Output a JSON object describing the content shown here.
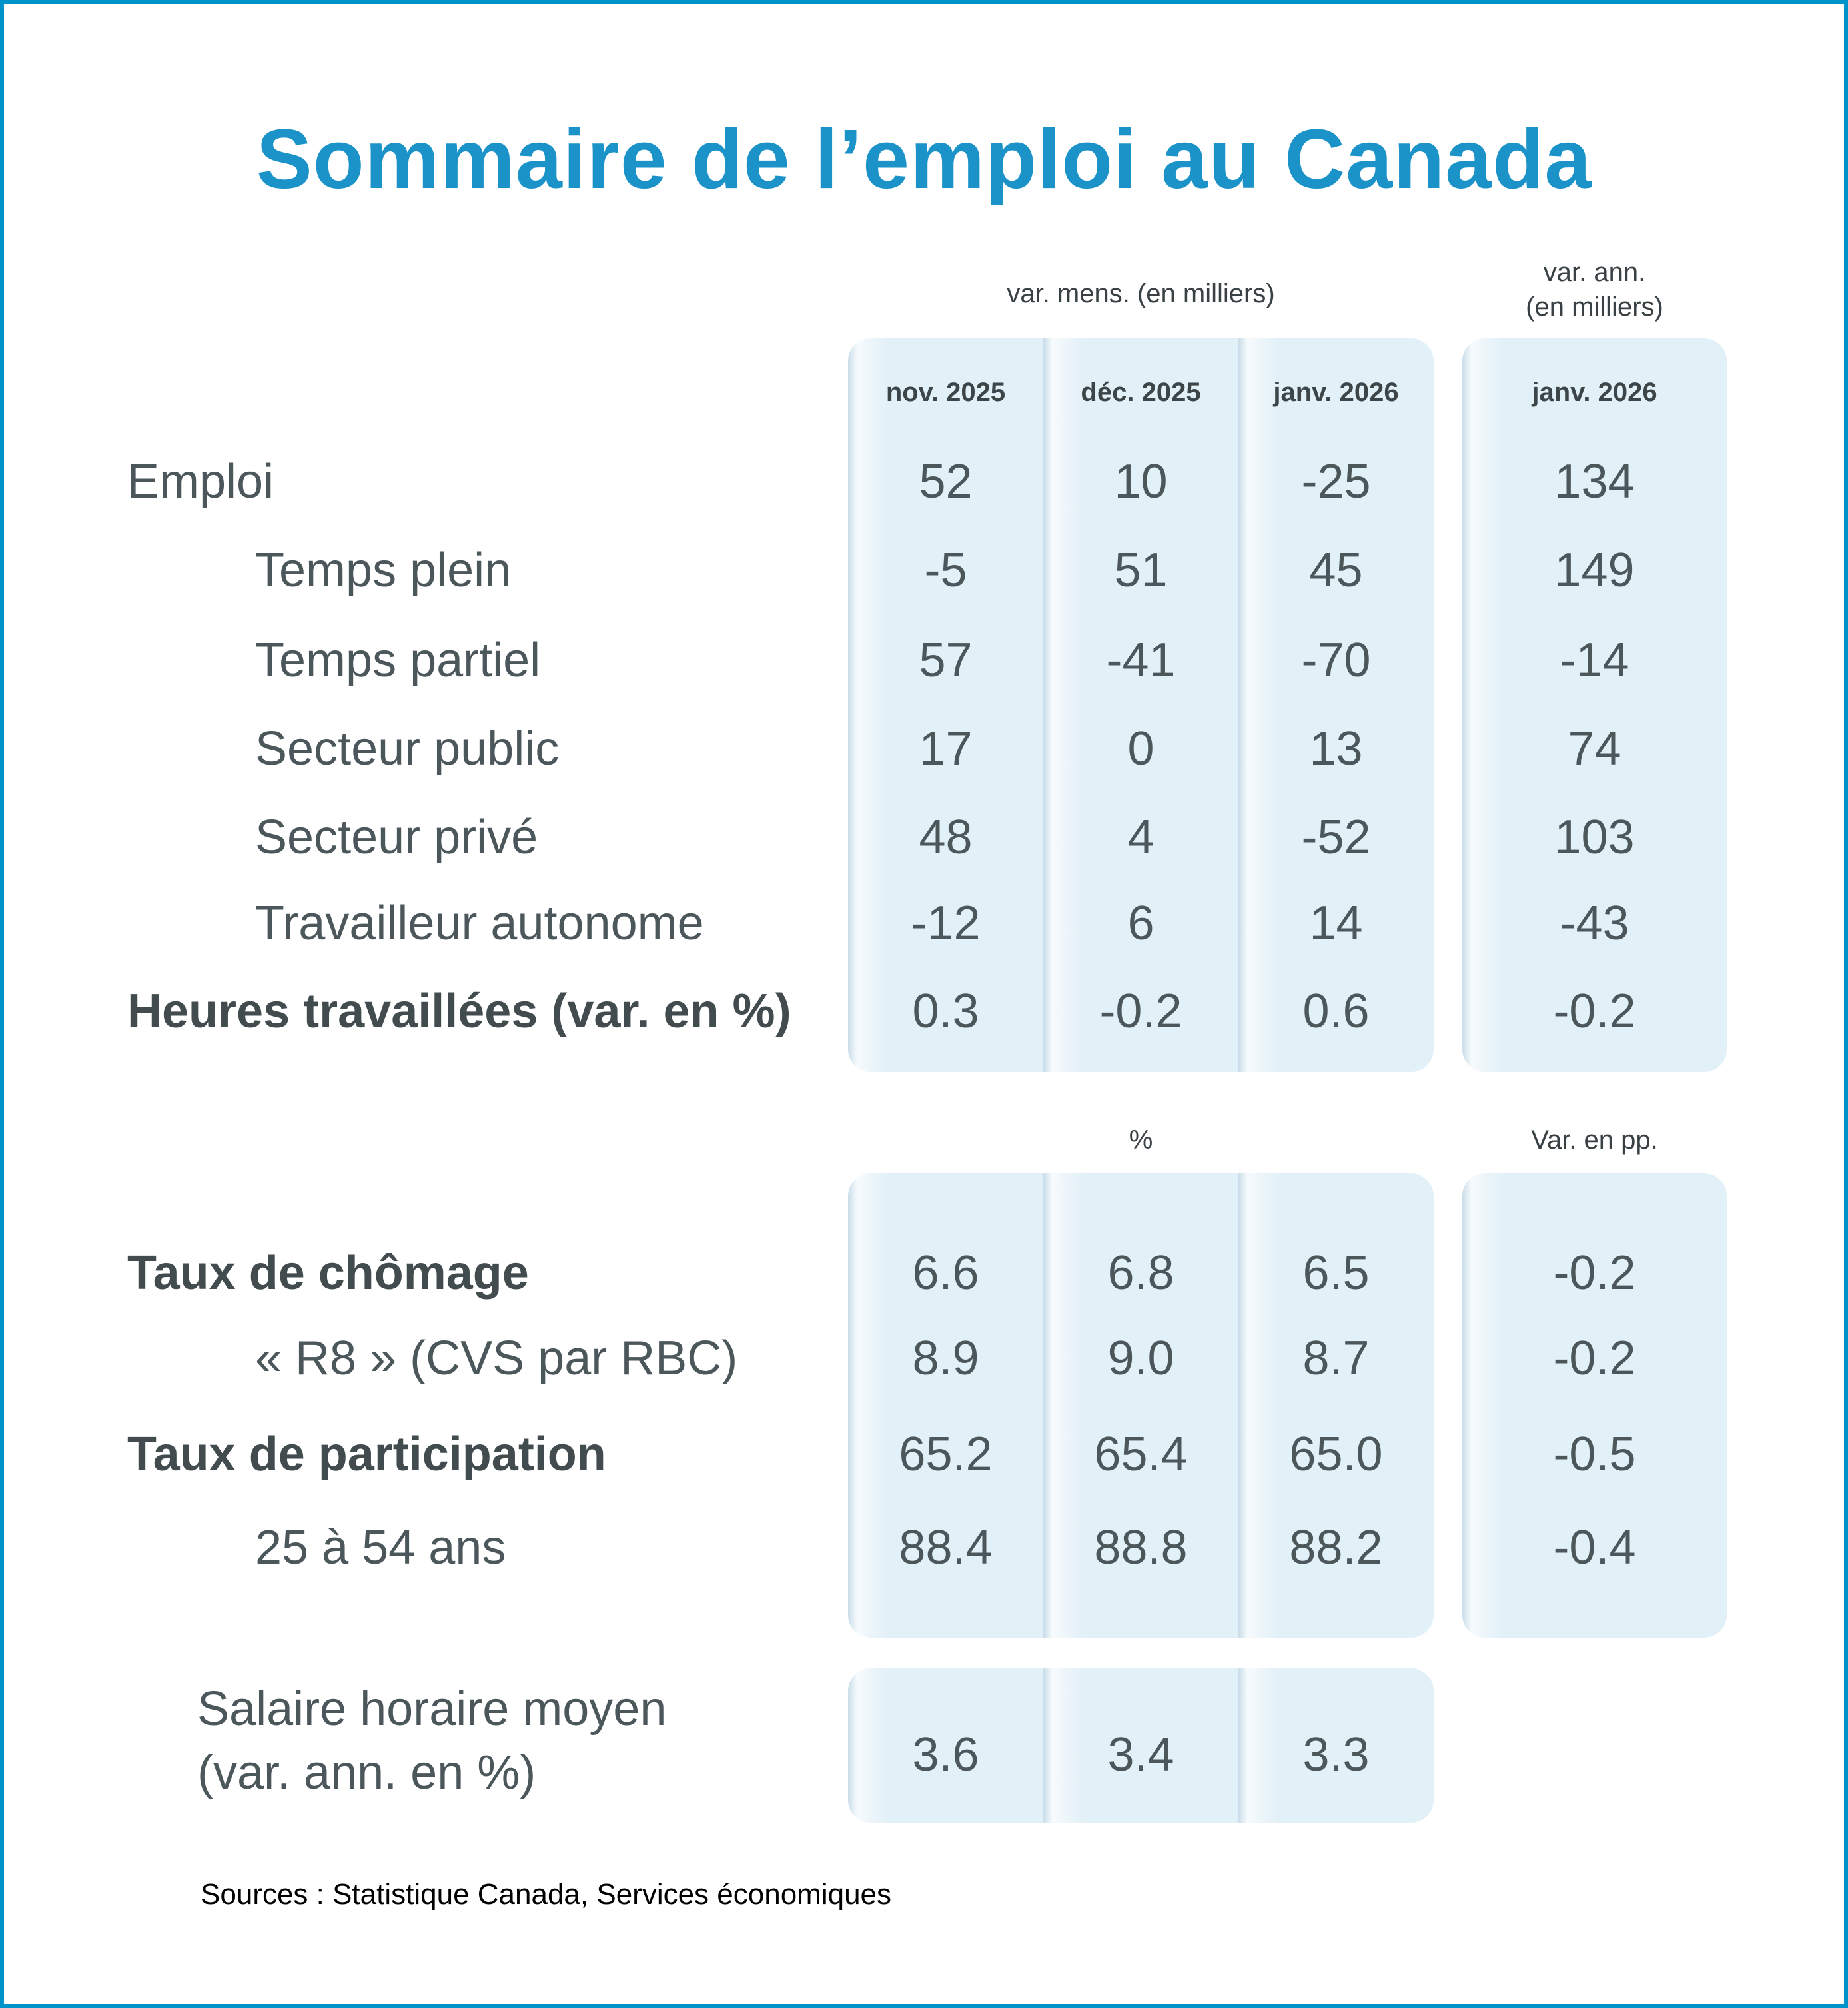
{
  "title": "Sommaire de l’emploi au Canada",
  "colors": {
    "frame": "#0093c9",
    "title": "#1b93c9",
    "band": "#e2f0f8",
    "text": "#4c575b"
  },
  "table": {
    "group_headers": {
      "monthly": "var. mens. (en milliers)",
      "annual_line1": "var. ann.",
      "annual_line2": "(en milliers)"
    },
    "columns": [
      "nov. 2025",
      "déc. 2025",
      "janv. 2026"
    ],
    "annual_column": "janv. 2026",
    "section1": {
      "rows": [
        {
          "label": "Emploi",
          "indent": false,
          "bold": false,
          "values": [
            "52",
            "10",
            "-25",
            "134"
          ]
        },
        {
          "label": "Temps plein",
          "indent": true,
          "bold": false,
          "values": [
            "-5",
            "51",
            "45",
            "149"
          ]
        },
        {
          "label": "Temps partiel",
          "indent": true,
          "bold": false,
          "values": [
            "57",
            "-41",
            "-70",
            "-14"
          ]
        },
        {
          "label": "Secteur public",
          "indent": true,
          "bold": false,
          "values": [
            "17",
            "0",
            "13",
            "74"
          ]
        },
        {
          "label": "Secteur privé",
          "indent": true,
          "bold": false,
          "values": [
            "48",
            "4",
            "-52",
            "103"
          ]
        },
        {
          "label": "Travailleur autonome",
          "indent": true,
          "bold": false,
          "values": [
            "-12",
            "6",
            "14",
            "-43"
          ]
        },
        {
          "label": "Heures travaillées (var. en %)",
          "indent": false,
          "bold": true,
          "values": [
            "0.3",
            "-0.2",
            "0.6",
            "-0.2"
          ]
        }
      ]
    },
    "section2": {
      "header_monthly": "%",
      "header_annual": "Var. en pp.",
      "rows": [
        {
          "label": "Taux de chômage",
          "indent": false,
          "bold": true,
          "values": [
            "6.6",
            "6.8",
            "6.5",
            "-0.2"
          ]
        },
        {
          "label": "« R8 » (CVS par RBC)",
          "indent": true,
          "bold": false,
          "values": [
            "8.9",
            "9.0",
            "8.7",
            "-0.2"
          ]
        },
        {
          "label": "Taux de participation",
          "indent": false,
          "bold": true,
          "values": [
            "65.2",
            "65.4",
            "65.0",
            "-0.5"
          ]
        },
        {
          "label": "25 à 54 ans",
          "indent": true,
          "bold": false,
          "values": [
            "88.4",
            "88.8",
            "88.2",
            "-0.4"
          ]
        }
      ]
    },
    "section3": {
      "label_line1": "Salaire horaire moyen",
      "label_line2": "(var. ann. en %)",
      "values": [
        "3.6",
        "3.4",
        "3.3"
      ]
    }
  },
  "source": "Sources : Statistique Canada, Services économiques",
  "chart_data": {
    "type": "table",
    "title": "Sommaire de l’emploi au Canada",
    "column_groups": [
      "var. mens. (en milliers)",
      "var. ann. (en milliers)"
    ],
    "columns": [
      "nov. 2025",
      "déc. 2025",
      "janv. 2026",
      "janv. 2026 (var. ann.)"
    ],
    "rows": [
      {
        "label": "Emploi",
        "values": [
          52,
          10,
          -25,
          134
        ]
      },
      {
        "label": "Temps plein",
        "values": [
          -5,
          51,
          45,
          149
        ]
      },
      {
        "label": "Temps partiel",
        "values": [
          57,
          -41,
          -70,
          -14
        ]
      },
      {
        "label": "Secteur public",
        "values": [
          17,
          0,
          13,
          74
        ]
      },
      {
        "label": "Secteur privé",
        "values": [
          48,
          4,
          -52,
          103
        ]
      },
      {
        "label": "Travailleur autonome",
        "values": [
          -12,
          6,
          14,
          -43
        ]
      },
      {
        "label": "Heures travaillées (var. en %)",
        "values": [
          0.3,
          -0.2,
          0.6,
          -0.2
        ]
      },
      {
        "label": "Taux de chômage (%)",
        "values": [
          6.6,
          6.8,
          6.5,
          -0.2
        ]
      },
      {
        "label": "« R8 » (CVS par RBC) (%)",
        "values": [
          8.9,
          9.0,
          8.7,
          -0.2
        ]
      },
      {
        "label": "Taux de participation (%)",
        "values": [
          65.2,
          65.4,
          65.0,
          -0.5
        ]
      },
      {
        "label": "25 à 54 ans (%)",
        "values": [
          88.4,
          88.8,
          88.2,
          -0.4
        ]
      },
      {
        "label": "Salaire horaire moyen (var. ann. en %)",
        "values": [
          3.6,
          3.4,
          3.3,
          null
        ]
      }
    ],
    "notes": "Annual-change column for percentage rows is expressed in percentage points (Var. en pp.)"
  }
}
